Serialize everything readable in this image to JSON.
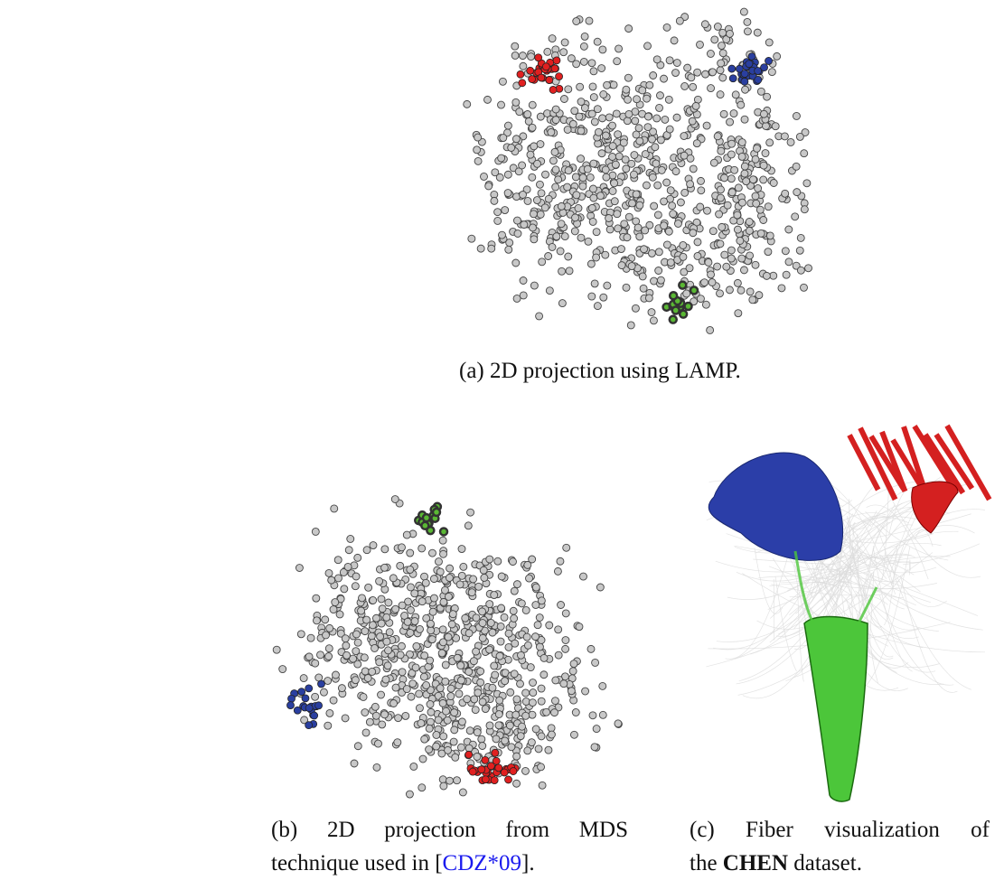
{
  "figures": {
    "a": {
      "caption": "(a)  2D projection using LAMP.",
      "cluster_colors": {
        "red": "#e02020",
        "blue": "#2a3fa0",
        "green": "#5ab834",
        "other": "#c8c8c8"
      }
    },
    "b": {
      "caption_line1": "(b)  2D  projection  from  MDS",
      "caption_line2_pre": "technique used in [",
      "caption_cite": "CDZ*09",
      "caption_line2_post": "].",
      "cluster_colors": {
        "red": "#e02020",
        "blue": "#2a3fa0",
        "green": "#5ab834",
        "other": "#c8c8c8"
      }
    },
    "c": {
      "caption_line1": "(c)  Fiber  visualization  of",
      "caption_line2_pre": "the ",
      "caption_bold": "CHEN",
      "caption_line2_post": " dataset.",
      "bundle_colors": {
        "blue": "#2b3ea8",
        "red": "#d42020",
        "green": "#4cc63a",
        "context": "#dcdcdc"
      }
    }
  }
}
